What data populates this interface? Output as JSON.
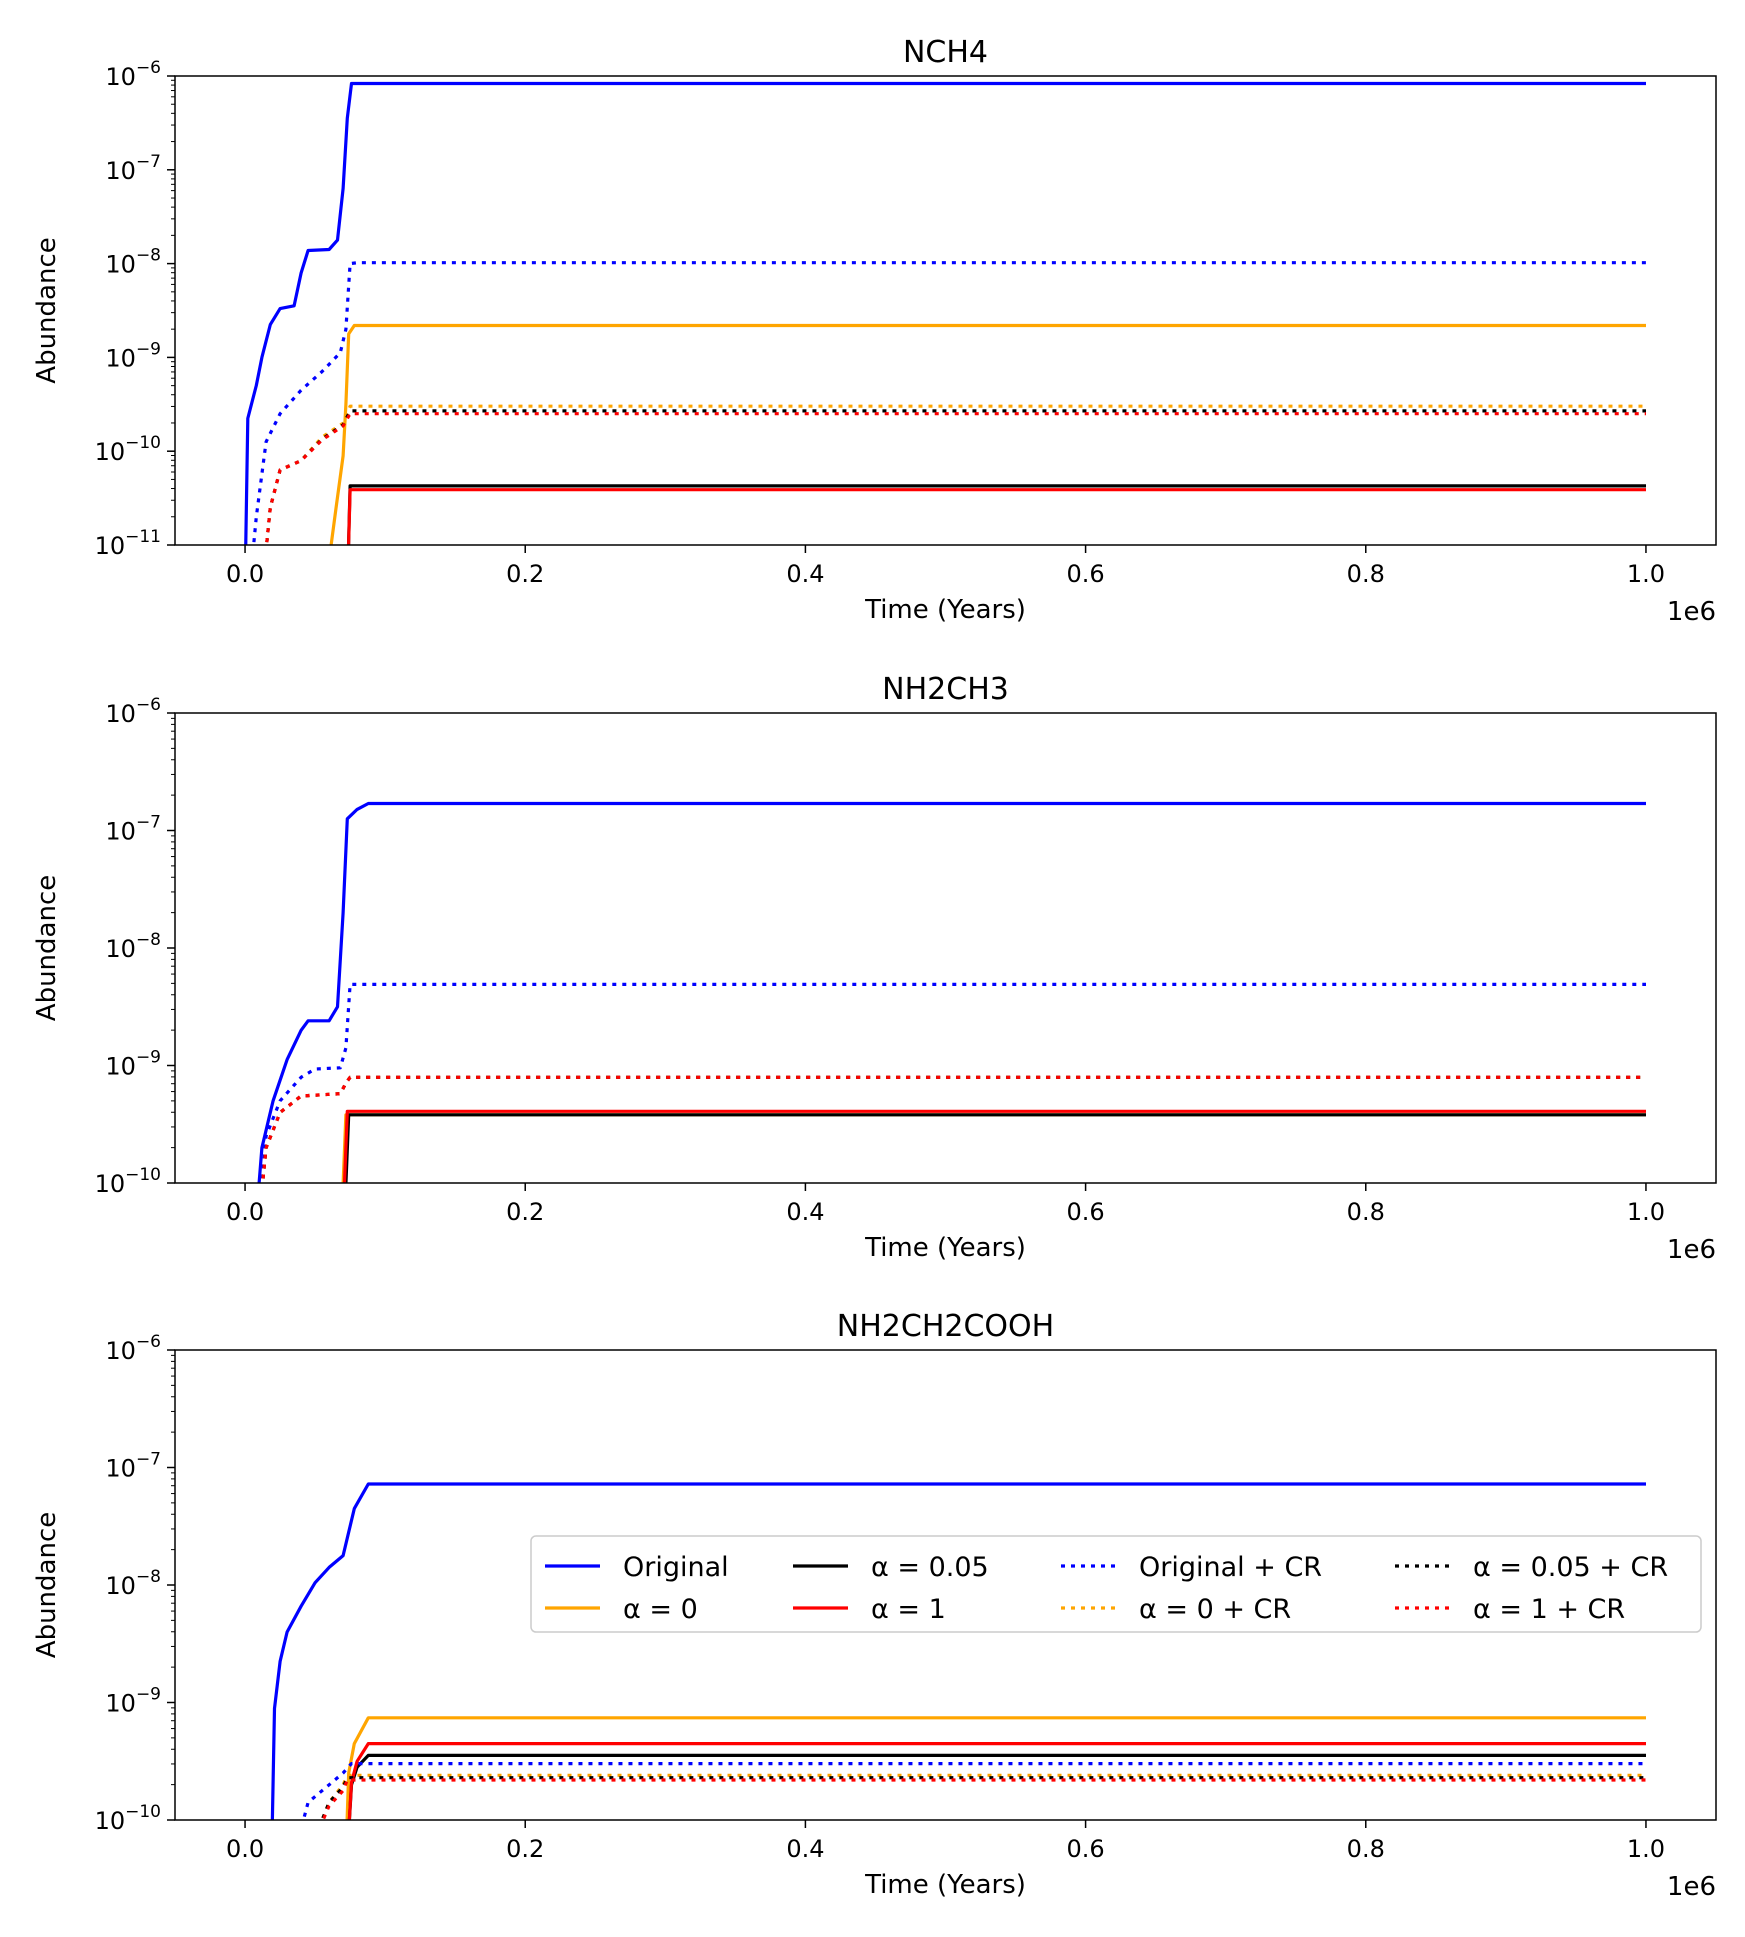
{
  "chart_data": [
    {
      "type": "line",
      "title": "NCH4",
      "xlabel": "Time (Years)",
      "ylabel": "Abundance",
      "x_offset_label": "1e6",
      "xlim": [
        -0.05,
        1.05
      ],
      "ylim_log10": [
        -11,
        -6
      ],
      "yscale": "log",
      "x_ticks": [
        "0.0",
        "0.2",
        "0.4",
        "0.6",
        "0.8",
        "1.0"
      ],
      "y_ticks": [
        "10^-11",
        "10^-10",
        "10^-9",
        "10^-8",
        "10^-7",
        "10^-6"
      ],
      "series": [
        {
          "name": "Original",
          "color": "#0000ff",
          "style": "solid",
          "points": [
            [
              0.0,
              -11.5
            ],
            [
              0.002,
              -9.65
            ],
            [
              0.008,
              -9.3
            ],
            [
              0.012,
              -9.0
            ],
            [
              0.018,
              -8.65
            ],
            [
              0.025,
              -8.48
            ],
            [
              0.035,
              -8.45
            ],
            [
              0.04,
              -8.1
            ],
            [
              0.045,
              -7.86
            ],
            [
              0.06,
              -7.85
            ],
            [
              0.066,
              -7.75
            ],
            [
              0.07,
              -7.2
            ],
            [
              0.073,
              -6.45
            ],
            [
              0.076,
              -6.08
            ],
            [
              0.08,
              -6.08
            ],
            [
              1.0,
              -6.08
            ]
          ]
        },
        {
          "name": "α = 0",
          "color": "#ffa500",
          "style": "solid",
          "points": [
            [
              0.057,
              -11.5
            ],
            [
              0.065,
              -10.6
            ],
            [
              0.07,
              -10.05
            ],
            [
              0.072,
              -9.5
            ],
            [
              0.074,
              -8.75
            ],
            [
              0.078,
              -8.66
            ],
            [
              1.0,
              -8.66
            ]
          ]
        },
        {
          "name": "α = 0.05",
          "color": "#000000",
          "style": "solid",
          "points": [
            [
              0.073,
              -11.5
            ],
            [
              0.075,
              -10.37
            ],
            [
              1.0,
              -10.37
            ]
          ]
        },
        {
          "name": "α = 1",
          "color": "#ff0000",
          "style": "solid",
          "points": [
            [
              0.073,
              -11.5
            ],
            [
              0.075,
              -10.41
            ],
            [
              1.0,
              -10.41
            ]
          ]
        },
        {
          "name": "Original + CR",
          "color": "#0000ff",
          "style": "dotted",
          "points": [
            [
              0.003,
              -11.5
            ],
            [
              0.008,
              -10.7
            ],
            [
              0.015,
              -9.9
            ],
            [
              0.025,
              -9.6
            ],
            [
              0.04,
              -9.35
            ],
            [
              0.055,
              -9.15
            ],
            [
              0.068,
              -8.95
            ],
            [
              0.072,
              -8.7
            ],
            [
              0.075,
              -8.0
            ],
            [
              0.08,
              -7.99
            ],
            [
              1.0,
              -7.99
            ]
          ]
        },
        {
          "name": "α = 0 + CR",
          "color": "#ffa500",
          "style": "dotted",
          "points": [
            [
              0.012,
              -11.5
            ],
            [
              0.018,
              -10.6
            ],
            [
              0.025,
              -10.2
            ],
            [
              0.04,
              -10.1
            ],
            [
              0.055,
              -9.85
            ],
            [
              0.07,
              -9.7
            ],
            [
              0.075,
              -9.52
            ],
            [
              1.0,
              -9.52
            ]
          ]
        },
        {
          "name": "α = 0.05 + CR",
          "color": "#000000",
          "style": "dotted",
          "points": [
            [
              0.012,
              -11.5
            ],
            [
              0.018,
              -10.6
            ],
            [
              0.025,
              -10.2
            ],
            [
              0.04,
              -10.1
            ],
            [
              0.055,
              -9.87
            ],
            [
              0.07,
              -9.72
            ],
            [
              0.075,
              -9.57
            ],
            [
              1.0,
              -9.57
            ]
          ]
        },
        {
          "name": "α = 1 + CR",
          "color": "#ff0000",
          "style": "dotted",
          "points": [
            [
              0.012,
              -11.5
            ],
            [
              0.018,
              -10.6
            ],
            [
              0.025,
              -10.2
            ],
            [
              0.04,
              -10.1
            ],
            [
              0.055,
              -9.88
            ],
            [
              0.07,
              -9.73
            ],
            [
              0.075,
              -9.6
            ],
            [
              1.0,
              -9.6
            ]
          ]
        }
      ]
    },
    {
      "type": "line",
      "title": "NH2CH3",
      "xlabel": "Time (Years)",
      "ylabel": "Abundance",
      "x_offset_label": "1e6",
      "xlim": [
        -0.05,
        1.05
      ],
      "ylim_log10": [
        -10,
        -6
      ],
      "yscale": "log",
      "x_ticks": [
        "0.0",
        "0.2",
        "0.4",
        "0.6",
        "0.8",
        "1.0"
      ],
      "y_ticks": [
        "10^-10",
        "10^-9",
        "10^-8",
        "10^-7",
        "10^-6"
      ],
      "series": [
        {
          "name": "Original",
          "color": "#0000ff",
          "style": "solid",
          "points": [
            [
              0.008,
              -10.3
            ],
            [
              0.012,
              -9.7
            ],
            [
              0.02,
              -9.3
            ],
            [
              0.03,
              -8.95
            ],
            [
              0.04,
              -8.7
            ],
            [
              0.045,
              -8.62
            ],
            [
              0.06,
              -8.62
            ],
            [
              0.066,
              -8.5
            ],
            [
              0.07,
              -7.7
            ],
            [
              0.073,
              -6.9
            ],
            [
              0.08,
              -6.82
            ],
            [
              0.088,
              -6.77
            ],
            [
              1.0,
              -6.77
            ]
          ]
        },
        {
          "name": "α = 0",
          "color": "#ffa500",
          "style": "solid",
          "points": [
            [
              0.069,
              -10.3
            ],
            [
              0.072,
              -9.42
            ],
            [
              1.0,
              -9.42
            ]
          ]
        },
        {
          "name": "α = 0.05",
          "color": "#000000",
          "style": "solid",
          "points": [
            [
              0.071,
              -10.3
            ],
            [
              0.074,
              -9.42
            ],
            [
              1.0,
              -9.42
            ]
          ]
        },
        {
          "name": "α = 1",
          "color": "#ff0000",
          "style": "solid",
          "points": [
            [
              0.07,
              -10.3
            ],
            [
              0.073,
              -9.39
            ],
            [
              1.0,
              -9.39
            ]
          ]
        },
        {
          "name": "Original + CR",
          "color": "#0000ff",
          "style": "dotted",
          "points": [
            [
              0.01,
              -10.3
            ],
            [
              0.015,
              -9.6
            ],
            [
              0.025,
              -9.3
            ],
            [
              0.04,
              -9.1
            ],
            [
              0.05,
              -9.03
            ],
            [
              0.068,
              -9.02
            ],
            [
              0.072,
              -8.85
            ],
            [
              0.075,
              -8.31
            ],
            [
              1.0,
              -8.31
            ]
          ]
        },
        {
          "name": "α = 0 + CR",
          "color": "#ffa500",
          "style": "dotted",
          "points": [
            [
              0.01,
              -10.3
            ],
            [
              0.015,
              -9.7
            ],
            [
              0.025,
              -9.4
            ],
            [
              0.04,
              -9.26
            ],
            [
              0.068,
              -9.24
            ],
            [
              0.072,
              -9.15
            ],
            [
              0.075,
              -9.1
            ],
            [
              1.0,
              -9.1
            ]
          ]
        },
        {
          "name": "α = 0.05 + CR",
          "color": "#000000",
          "style": "dotted",
          "points": [
            [
              0.01,
              -10.3
            ],
            [
              0.015,
              -9.7
            ],
            [
              0.025,
              -9.4
            ],
            [
              0.04,
              -9.26
            ],
            [
              0.068,
              -9.24
            ],
            [
              0.072,
              -9.15
            ],
            [
              0.075,
              -9.1
            ],
            [
              1.0,
              -9.1
            ]
          ]
        },
        {
          "name": "α = 1 + CR",
          "color": "#ff0000",
          "style": "dotted",
          "points": [
            [
              0.01,
              -10.3
            ],
            [
              0.015,
              -9.7
            ],
            [
              0.025,
              -9.4
            ],
            [
              0.04,
              -9.26
            ],
            [
              0.068,
              -9.24
            ],
            [
              0.072,
              -9.15
            ],
            [
              0.075,
              -9.1
            ],
            [
              1.0,
              -9.1
            ]
          ]
        }
      ]
    },
    {
      "type": "line",
      "title": "NH2CH2COOH",
      "xlabel": "Time (Years)",
      "ylabel": "Abundance",
      "x_offset_label": "1e6",
      "xlim": [
        -0.05,
        1.05
      ],
      "ylim_log10": [
        -10,
        -6
      ],
      "yscale": "log",
      "x_ticks": [
        "0.0",
        "0.2",
        "0.4",
        "0.6",
        "0.8",
        "1.0"
      ],
      "y_ticks": [
        "10^-10",
        "10^-9",
        "10^-8",
        "10^-7",
        "10^-6"
      ],
      "legend_location": "center-right",
      "series": [
        {
          "name": "Original",
          "color": "#0000ff",
          "style": "solid",
          "points": [
            [
              0.019,
              -10.3
            ],
            [
              0.021,
              -9.05
            ],
            [
              0.025,
              -8.65
            ],
            [
              0.03,
              -8.4
            ],
            [
              0.04,
              -8.18
            ],
            [
              0.05,
              -7.98
            ],
            [
              0.06,
              -7.85
            ],
            [
              0.07,
              -7.75
            ],
            [
              0.073,
              -7.6
            ],
            [
              0.078,
              -7.35
            ],
            [
              0.088,
              -7.14
            ],
            [
              1.0,
              -7.14
            ]
          ]
        },
        {
          "name": "α = 0",
          "color": "#ffa500",
          "style": "solid",
          "points": [
            [
              0.072,
              -10.3
            ],
            [
              0.074,
              -9.6
            ],
            [
              0.078,
              -9.35
            ],
            [
              0.088,
              -9.13
            ],
            [
              1.0,
              -9.13
            ]
          ]
        },
        {
          "name": "α = 0.05",
          "color": "#000000",
          "style": "solid",
          "points": [
            [
              0.073,
              -10.3
            ],
            [
              0.076,
              -9.7
            ],
            [
              0.08,
              -9.55
            ],
            [
              0.088,
              -9.45
            ],
            [
              1.0,
              -9.45
            ]
          ]
        },
        {
          "name": "α = 1",
          "color": "#ff0000",
          "style": "solid",
          "points": [
            [
              0.073,
              -10.3
            ],
            [
              0.076,
              -9.68
            ],
            [
              0.08,
              -9.5
            ],
            [
              0.088,
              -9.35
            ],
            [
              1.0,
              -9.35
            ]
          ]
        },
        {
          "name": "Original + CR",
          "color": "#0000ff",
          "style": "dotted",
          "points": [
            [
              0.035,
              -10.3
            ],
            [
              0.045,
              -9.85
            ],
            [
              0.06,
              -9.7
            ],
            [
              0.07,
              -9.6
            ],
            [
              0.076,
              -9.52
            ],
            [
              1.0,
              -9.52
            ]
          ]
        },
        {
          "name": "α = 0 + CR",
          "color": "#ffa500",
          "style": "dotted",
          "points": [
            [
              0.045,
              -10.3
            ],
            [
              0.06,
              -9.85
            ],
            [
              0.07,
              -9.7
            ],
            [
              0.073,
              -9.62
            ],
            [
              1.0,
              -9.62
            ]
          ]
        },
        {
          "name": "α = 0.05 + CR",
          "color": "#000000",
          "style": "dotted",
          "points": [
            [
              0.045,
              -10.3
            ],
            [
              0.06,
              -9.85
            ],
            [
              0.07,
              -9.72
            ],
            [
              0.073,
              -9.64
            ],
            [
              1.0,
              -9.64
            ]
          ]
        },
        {
          "name": "α = 1 + CR",
          "color": "#ff0000",
          "style": "dotted",
          "points": [
            [
              0.045,
              -10.3
            ],
            [
              0.06,
              -9.88
            ],
            [
              0.07,
              -9.75
            ],
            [
              0.073,
              -9.66
            ],
            [
              1.0,
              -9.66
            ]
          ]
        }
      ]
    }
  ],
  "legend": {
    "entries": [
      {
        "name": "Original",
        "color": "#0000ff",
        "style": "solid"
      },
      {
        "name": "α = 0",
        "color": "#ffa500",
        "style": "solid"
      },
      {
        "name": "α = 0.05",
        "color": "#000000",
        "style": "solid"
      },
      {
        "name": "α = 1",
        "color": "#ff0000",
        "style": "solid"
      },
      {
        "name": "Original + CR",
        "color": "#0000ff",
        "style": "dotted"
      },
      {
        "name": "α = 0 + CR",
        "color": "#ffa500",
        "style": "dotted"
      },
      {
        "name": "α = 0.05 + CR",
        "color": "#000000",
        "style": "dotted"
      },
      {
        "name": "α = 1 + CR",
        "color": "#ff0000",
        "style": "dotted"
      }
    ]
  }
}
